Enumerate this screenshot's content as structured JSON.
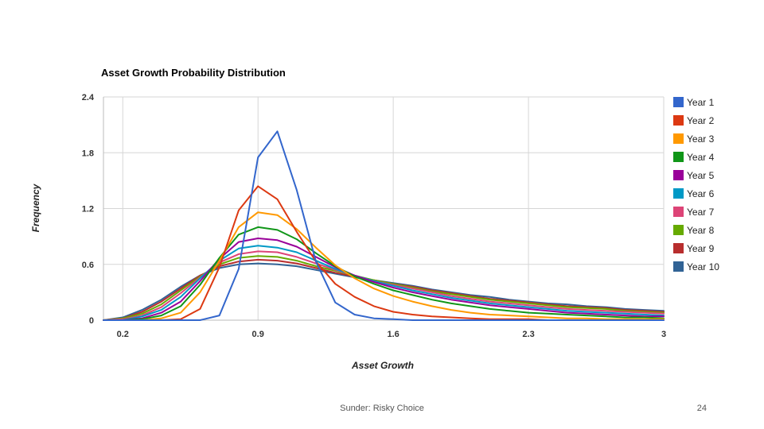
{
  "chart_data": {
    "type": "line",
    "title": "Asset Growth Probability Distribution",
    "xlabel": "Asset Growth",
    "ylabel": "Frequency",
    "xlim": [
      0.1,
      3.0
    ],
    "ylim": [
      0,
      2.4
    ],
    "x_ticks": [
      0.2,
      0.9,
      1.6,
      2.3,
      3
    ],
    "y_ticks": [
      0,
      0.6,
      1.2,
      1.8,
      2.4
    ],
    "x_tick_labels": [
      "0.2",
      "0.9",
      "1.6",
      "2.3",
      "3"
    ],
    "y_tick_labels": [
      "0",
      "0.6",
      "1.2",
      "1.8",
      "2.4"
    ],
    "grid": true,
    "legend": "right",
    "x": [
      0.1,
      0.2,
      0.3,
      0.4,
      0.5,
      0.6,
      0.7,
      0.8,
      0.9,
      1.0,
      1.1,
      1.2,
      1.3,
      1.4,
      1.5,
      1.6,
      1.7,
      1.8,
      1.9,
      2.0,
      2.1,
      2.2,
      2.3,
      2.4,
      2.5,
      2.6,
      2.7,
      2.8,
      2.9,
      3.0
    ],
    "series": [
      {
        "name": "Year 1",
        "color": "#3366cc",
        "values": [
          0,
          0,
          0,
          0,
          0,
          0,
          0.05,
          0.55,
          1.75,
          2.03,
          1.4,
          0.63,
          0.19,
          0.06,
          0.02,
          0.01,
          0,
          0,
          0,
          0,
          0,
          0,
          0,
          0,
          0,
          0,
          0,
          0,
          0,
          0
        ]
      },
      {
        "name": "Year 2",
        "color": "#dc3912",
        "values": [
          0,
          0,
          0,
          0,
          0.01,
          0.12,
          0.57,
          1.18,
          1.44,
          1.3,
          0.95,
          0.63,
          0.39,
          0.25,
          0.15,
          0.09,
          0.06,
          0.04,
          0.03,
          0.02,
          0.01,
          0.01,
          0.01,
          0,
          0,
          0,
          0,
          0,
          0,
          0
        ]
      },
      {
        "name": "Year 3",
        "color": "#ff9900",
        "values": [
          0,
          0,
          0,
          0.02,
          0.08,
          0.3,
          0.64,
          1.0,
          1.16,
          1.13,
          0.98,
          0.78,
          0.59,
          0.45,
          0.34,
          0.26,
          0.2,
          0.15,
          0.11,
          0.08,
          0.06,
          0.05,
          0.04,
          0.03,
          0.02,
          0.02,
          0.01,
          0.01,
          0.01,
          0.01
        ]
      },
      {
        "name": "Year 4",
        "color": "#109618",
        "values": [
          0,
          0,
          0.01,
          0.05,
          0.15,
          0.38,
          0.67,
          0.92,
          1.0,
          0.97,
          0.87,
          0.72,
          0.58,
          0.47,
          0.39,
          0.32,
          0.27,
          0.22,
          0.18,
          0.15,
          0.12,
          0.1,
          0.08,
          0.07,
          0.06,
          0.05,
          0.04,
          0.03,
          0.03,
          0.02
        ]
      },
      {
        "name": "Year 5",
        "color": "#990099",
        "values": [
          0,
          0,
          0.02,
          0.08,
          0.2,
          0.42,
          0.66,
          0.84,
          0.88,
          0.86,
          0.79,
          0.68,
          0.57,
          0.48,
          0.41,
          0.35,
          0.3,
          0.26,
          0.22,
          0.19,
          0.16,
          0.14,
          0.12,
          0.1,
          0.08,
          0.07,
          0.06,
          0.05,
          0.04,
          0.04
        ]
      },
      {
        "name": "Year 6",
        "color": "#0099c6",
        "values": [
          0,
          0,
          0.04,
          0.11,
          0.25,
          0.45,
          0.64,
          0.77,
          0.8,
          0.78,
          0.73,
          0.64,
          0.55,
          0.48,
          0.42,
          0.37,
          0.32,
          0.28,
          0.24,
          0.21,
          0.18,
          0.16,
          0.14,
          0.12,
          0.1,
          0.09,
          0.08,
          0.07,
          0.06,
          0.05
        ]
      },
      {
        "name": "Year 7",
        "color": "#dd4477",
        "values": [
          0,
          0.01,
          0.05,
          0.14,
          0.29,
          0.46,
          0.62,
          0.71,
          0.74,
          0.73,
          0.68,
          0.61,
          0.54,
          0.48,
          0.42,
          0.38,
          0.34,
          0.3,
          0.26,
          0.23,
          0.2,
          0.18,
          0.16,
          0.14,
          0.12,
          0.11,
          0.1,
          0.09,
          0.08,
          0.07
        ]
      },
      {
        "name": "Year 8",
        "color": "#66aa00",
        "values": [
          0,
          0.02,
          0.07,
          0.17,
          0.32,
          0.47,
          0.6,
          0.67,
          0.69,
          0.68,
          0.64,
          0.58,
          0.53,
          0.48,
          0.43,
          0.39,
          0.35,
          0.31,
          0.28,
          0.25,
          0.22,
          0.2,
          0.18,
          0.16,
          0.14,
          0.13,
          0.12,
          0.1,
          0.09,
          0.08
        ]
      },
      {
        "name": "Year 9",
        "color": "#b82e2e",
        "values": [
          0,
          0.02,
          0.09,
          0.2,
          0.34,
          0.48,
          0.58,
          0.63,
          0.65,
          0.64,
          0.61,
          0.56,
          0.51,
          0.47,
          0.43,
          0.39,
          0.36,
          0.32,
          0.29,
          0.26,
          0.23,
          0.21,
          0.19,
          0.17,
          0.15,
          0.14,
          0.13,
          0.11,
          0.1,
          0.09
        ]
      },
      {
        "name": "Year 10",
        "color": "#316395",
        "values": [
          0,
          0.03,
          0.11,
          0.22,
          0.36,
          0.48,
          0.56,
          0.6,
          0.61,
          0.6,
          0.58,
          0.54,
          0.5,
          0.46,
          0.43,
          0.4,
          0.37,
          0.33,
          0.3,
          0.27,
          0.25,
          0.22,
          0.2,
          0.18,
          0.17,
          0.15,
          0.14,
          0.12,
          0.11,
          0.1
        ]
      }
    ]
  },
  "footer": {
    "text": "Sunder: Risky Choice",
    "page_number": "24"
  }
}
